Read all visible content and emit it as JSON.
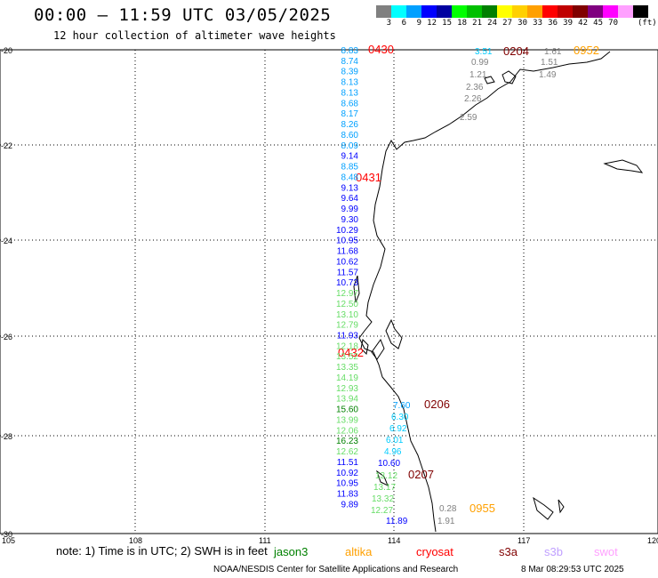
{
  "header": {
    "title": "00:00 – 11:59 UTC 03/05/2025",
    "subtitle": "12 hour collection of altimeter wave heights"
  },
  "colorbar": {
    "colors": [
      "#808080",
      "#00ffff",
      "#00a0ff",
      "#0000ff",
      "#0000a0",
      "#00ff00",
      "#00c000",
      "#008000",
      "#ffff00",
      "#ffd000",
      "#ffa000",
      "#ff0000",
      "#c00000",
      "#800000",
      "#800080",
      "#ff00ff",
      "#ffa0ff",
      "#000000"
    ],
    "ticks": [
      "3",
      "6",
      "9",
      "12",
      "15",
      "18",
      "21",
      "24",
      "27",
      "30",
      "33",
      "36",
      "39",
      "42",
      "45",
      "70"
    ],
    "unit": "(ft)"
  },
  "axes": {
    "lon_labels": [
      "105",
      "108",
      "111",
      "114",
      "117",
      "120"
    ],
    "lat_labels": [
      "-20",
      "-22",
      "-24",
      "-26",
      "-28",
      "-30"
    ]
  },
  "track_times": [
    {
      "text": "0430",
      "color": "#ff0000"
    },
    {
      "text": "0431",
      "color": "#ff0000"
    },
    {
      "text": "0432",
      "color": "#ff0000"
    },
    {
      "text": "0204",
      "color": "#800000"
    },
    {
      "text": "0952",
      "color": "#ffa000"
    },
    {
      "text": "0206",
      "color": "#800000"
    },
    {
      "text": "0207",
      "color": "#800000"
    },
    {
      "text": "0955",
      "color": "#ffa000"
    }
  ],
  "wave_heights": [
    {
      "text": "8.83",
      "color": "#00a0ff"
    },
    {
      "text": "8.74",
      "color": "#00a0ff"
    },
    {
      "text": "8.39",
      "color": "#00a0ff"
    },
    {
      "text": "8.13",
      "color": "#00a0ff"
    },
    {
      "text": "8.13",
      "color": "#00a0ff"
    },
    {
      "text": "8.68",
      "color": "#00a0ff"
    },
    {
      "text": "8.17",
      "color": "#00a0ff"
    },
    {
      "text": "8.26",
      "color": "#00a0ff"
    },
    {
      "text": "8.60",
      "color": "#00a0ff"
    },
    {
      "text": "8.09",
      "color": "#00a0ff"
    },
    {
      "text": "9.14",
      "color": "#0000ff"
    },
    {
      "text": "8.85",
      "color": "#00a0ff"
    },
    {
      "text": "8.48",
      "color": "#00a0ff"
    },
    {
      "text": "9.13",
      "color": "#0000ff"
    },
    {
      "text": "9.64",
      "color": "#0000ff"
    },
    {
      "text": "9.99",
      "color": "#0000ff"
    },
    {
      "text": "9.30",
      "color": "#0000ff"
    },
    {
      "text": "10.29",
      "color": "#0000ff"
    },
    {
      "text": "10.95",
      "color": "#0000ff"
    },
    {
      "text": "11.68",
      "color": "#0000ff"
    },
    {
      "text": "10.62",
      "color": "#0000ff"
    },
    {
      "text": "11.57",
      "color": "#0000ff"
    },
    {
      "text": "10.73",
      "color": "#0000ff"
    },
    {
      "text": "12.97",
      "color": "#66dd66"
    },
    {
      "text": "12.50",
      "color": "#66dd66"
    },
    {
      "text": "13.10",
      "color": "#66dd66"
    },
    {
      "text": "12.79",
      "color": "#66dd66"
    },
    {
      "text": "11.93",
      "color": "#0000ff"
    },
    {
      "text": "12.18",
      "color": "#66dd66"
    },
    {
      "text": "13.52",
      "color": "#66dd66"
    },
    {
      "text": "13.35",
      "color": "#66dd66"
    },
    {
      "text": "14.19",
      "color": "#66dd66"
    },
    {
      "text": "12.93",
      "color": "#66dd66"
    },
    {
      "text": "13.94",
      "color": "#66dd66"
    },
    {
      "text": "15.60",
      "color": "#008000"
    },
    {
      "text": "13.99",
      "color": "#66dd66"
    },
    {
      "text": "12.06",
      "color": "#66dd66"
    },
    {
      "text": "16.23",
      "color": "#008000"
    },
    {
      "text": "12.62",
      "color": "#66dd66"
    },
    {
      "text": "11.51",
      "color": "#0000ff"
    },
    {
      "text": "10.92",
      "color": "#0000ff"
    },
    {
      "text": "10.95",
      "color": "#0000ff"
    },
    {
      "text": "11.83",
      "color": "#0000ff"
    },
    {
      "text": "9.89",
      "color": "#0000ff"
    },
    {
      "text": "3.51",
      "color": "#00ccff"
    },
    {
      "text": "0.99",
      "color": "#808080"
    },
    {
      "text": "1.21",
      "color": "#808080"
    },
    {
      "text": "2.36",
      "color": "#808080"
    },
    {
      "text": "2.26",
      "color": "#808080"
    },
    {
      "text": "2.59",
      "color": "#808080"
    },
    {
      "text": "1.61",
      "color": "#808080"
    },
    {
      "text": "1.51",
      "color": "#808080"
    },
    {
      "text": "1.49",
      "color": "#808080"
    },
    {
      "text": "7.60",
      "color": "#00a0ff"
    },
    {
      "text": "6.30",
      "color": "#00ccff"
    },
    {
      "text": "6.92",
      "color": "#00ccff"
    },
    {
      "text": "6.01",
      "color": "#00ccff"
    },
    {
      "text": "4.96",
      "color": "#00ccff"
    },
    {
      "text": "10.60",
      "color": "#0000ff"
    },
    {
      "text": "13.12",
      "color": "#66dd66"
    },
    {
      "text": "13.17",
      "color": "#66dd66"
    },
    {
      "text": "13.32",
      "color": "#66dd66"
    },
    {
      "text": "12.27",
      "color": "#66dd66"
    },
    {
      "text": "11.89",
      "color": "#0000ff"
    },
    {
      "text": "0.28",
      "color": "#808080"
    },
    {
      "text": "1.91",
      "color": "#808080"
    }
  ],
  "footer": {
    "note": "note: 1) Time is in UTC; 2) SWH is in feet",
    "legend": [
      {
        "text": "jason3",
        "color": "#008000"
      },
      {
        "text": "altika",
        "color": "#ffa000"
      },
      {
        "text": "cryosat",
        "color": "#ff0000"
      },
      {
        "text": "s3a",
        "color": "#800000"
      },
      {
        "text": "s3b",
        "color": "#c0a0ff"
      },
      {
        "text": "swot",
        "color": "#ffa0ff"
      }
    ],
    "credit": "NOAA/NESDIS Center for Satellite Applications and Research",
    "timestamp": "8 Mar 08:29:53 UTC 2025"
  }
}
